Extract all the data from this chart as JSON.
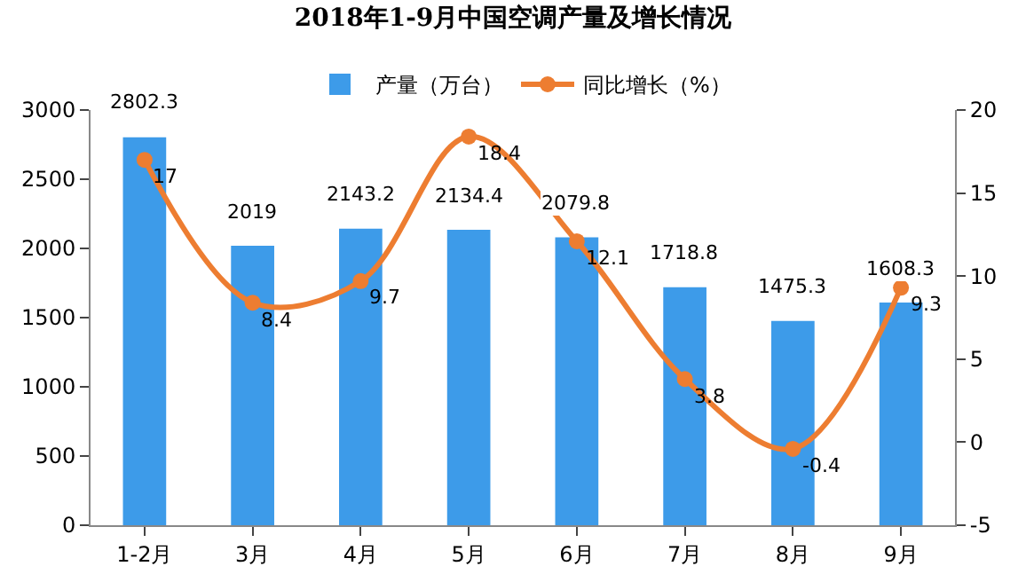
{
  "chart_data": {
    "type": "bar",
    "title": "2018年1-9月中国空调产量及增长情况",
    "categories": [
      "1-2月",
      "3月",
      "4月",
      "5月",
      "6月",
      "7月",
      "8月",
      "9月"
    ],
    "series": [
      {
        "name": "产量（万台）",
        "color": "#3d9be9",
        "values": [
          2802.3,
          2019,
          2143.2,
          2134.4,
          2079.8,
          1718.8,
          1475.3,
          1608.3
        ]
      },
      {
        "name": "同比增长（%）",
        "type": "line",
        "axis": "y2",
        "color": "#ed7d31",
        "marker": "circle",
        "values": [
          17,
          8.4,
          9.7,
          18.4,
          12.1,
          3.8,
          -0.4,
          9.3
        ]
      }
    ],
    "ylim": [
      0,
      3000
    ],
    "yticks": [
      0,
      500,
      1000,
      1500,
      2000,
      2500,
      3000
    ],
    "y2lim": [
      -5,
      20
    ],
    "y2ticks": [
      -5,
      0,
      5,
      10,
      15,
      20
    ],
    "grid": false,
    "legend": "top",
    "data_labels": true
  }
}
